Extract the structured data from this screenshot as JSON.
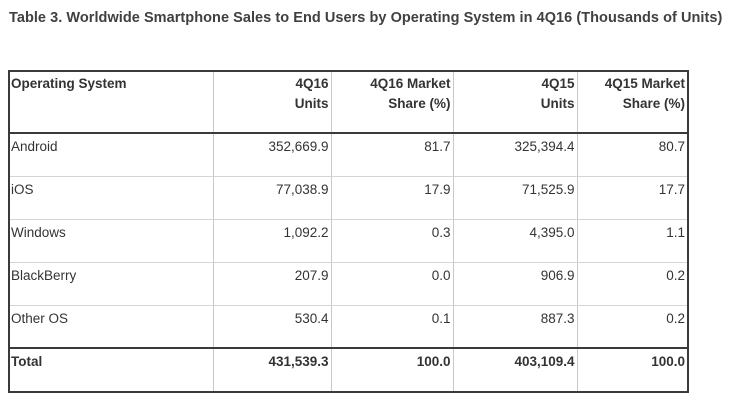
{
  "table": {
    "caption": "Table 3. Worldwide Smartphone Sales to End Users by Operating System in 4Q16 (Thousands of Units)",
    "headers": [
      {
        "line1": "Operating System",
        "line2": ""
      },
      {
        "line1": "4Q16",
        "line2": "Units"
      },
      {
        "line1": "4Q16 Market",
        "line2": "Share (%)"
      },
      {
        "line1": "4Q15",
        "line2": "Units"
      },
      {
        "line1": "4Q15 Market",
        "line2": "Share (%)"
      }
    ],
    "rows": [
      {
        "os": "Android",
        "units_4q16": "352,669.9",
        "share_4q16": "81.7",
        "units_4q15": "325,394.4",
        "share_4q15": "80.7"
      },
      {
        "os": "iOS",
        "units_4q16": "77,038.9",
        "share_4q16": "17.9",
        "units_4q15": "71,525.9",
        "share_4q15": "17.7"
      },
      {
        "os": "Windows",
        "units_4q16": "1,092.2",
        "share_4q16": "0.3",
        "units_4q15": "4,395.0",
        "share_4q15": "1.1"
      },
      {
        "os": "BlackBerry",
        "units_4q16": "207.9",
        "share_4q16": "0.0",
        "units_4q15": "906.9",
        "share_4q15": "0.2"
      },
      {
        "os": "Other OS",
        "units_4q16": "530.4",
        "share_4q16": "0.1",
        "units_4q15": "887.3",
        "share_4q15": "0.2"
      }
    ],
    "total": {
      "os": "Total",
      "units_4q16": "431,539.3",
      "share_4q16": "100.0",
      "units_4q15": "403,109.4",
      "share_4q15": "100.0"
    }
  }
}
